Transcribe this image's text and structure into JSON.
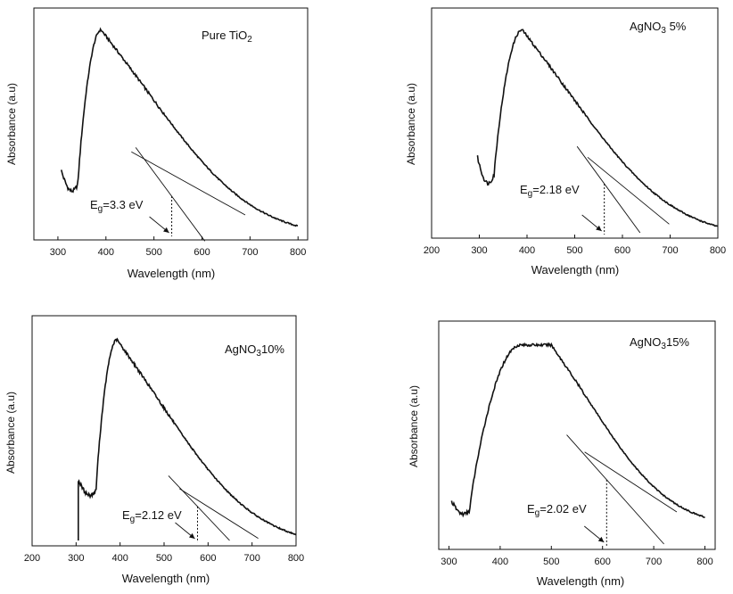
{
  "chart_data": [
    {
      "type": "line",
      "title": "Pure TiO",
      "title_sub": "2",
      "xlabel": "Wavelength (nm)",
      "ylabel": "Absorbance (a.u)",
      "xlim": [
        250,
        820
      ],
      "xticks": [
        300,
        400,
        500,
        600,
        700,
        800
      ],
      "ylim": [
        0,
        1
      ],
      "onset": 341,
      "peak_x": 390,
      "base_y": 0.3,
      "low_y": 0.2,
      "peak_y": 0.94,
      "end_x": 800,
      "end_y": 0.01,
      "tangent": [
        [
          462,
          0.4
        ],
        [
          606,
          -0.03
        ]
      ],
      "baseline": [
        [
          453,
          0.38
        ],
        [
          690,
          0.09
        ]
      ],
      "eg_x": 537,
      "eg_label_main": "E",
      "eg_label_sub": "g",
      "eg_label_rest": "=3.3 eV"
    },
    {
      "type": "line",
      "title": "AgNO",
      "title_sub": "3",
      "title_rest": " 5%",
      "xlabel": "Wavelength (nm)",
      "ylabel": "Absorbance (a.u)",
      "xlim": [
        200,
        800
      ],
      "xticks": [
        200,
        300,
        400,
        500,
        600,
        700,
        800
      ],
      "ylim": [
        0,
        1
      ],
      "onset": 330,
      "peak_x": 390,
      "base_y": 0.36,
      "low_y": 0.23,
      "peak_y": 0.94,
      "end_x": 800,
      "end_y": 0.0,
      "tangent": [
        [
          505,
          0.4
        ],
        [
          637,
          0.0
        ]
      ],
      "baseline": [
        [
          527,
          0.35
        ],
        [
          698,
          0.04
        ]
      ],
      "eg_x": 562,
      "eg_label_main": "E",
      "eg_label_sub": "g",
      "eg_label_rest": "=2.18 eV"
    },
    {
      "type": "line",
      "title": "AgNO",
      "title_sub": "3",
      "title_rest": "10%",
      "xlabel": "Wavelength (nm)",
      "ylabel": "Absorbance (a.u)",
      "xlim": [
        200,
        800
      ],
      "xticks": [
        200,
        300,
        400,
        500,
        600,
        700,
        800
      ],
      "ylim": [
        0,
        1
      ],
      "onset": 345,
      "peak_x": 393,
      "base_y": 0.28,
      "low_y": 0.21,
      "peak_y": 0.93,
      "start_x": 305,
      "end_x": 800,
      "end_y": 0.0,
      "tangent": [
        [
          510,
          0.3
        ],
        [
          649,
          0.0
        ]
      ],
      "baseline": [
        [
          535,
          0.24
        ],
        [
          714,
          0.01
        ]
      ],
      "eg_x": 576,
      "eg_label_main": "E",
      "eg_label_sub": "g",
      "eg_label_rest": "=2.12 eV"
    },
    {
      "type": "line",
      "title": "AgNO",
      "title_sub": "3",
      "title_rest": "15%",
      "xlabel": "Wavelength (nm)",
      "ylabel": "Absorbance (a.u)",
      "xlim": [
        280,
        820
      ],
      "xticks": [
        300,
        400,
        500,
        600,
        700,
        800
      ],
      "ylim": [
        0,
        1
      ],
      "onset": 340,
      "peak_x": 440,
      "peak_w": 60,
      "base_y": 0.2,
      "low_y": 0.14,
      "peak_y": 0.93,
      "end_x": 800,
      "end_y": 0.1,
      "tangent": [
        [
          530,
          0.51
        ],
        [
          720,
          0.0
        ]
      ],
      "baseline": [
        [
          565,
          0.43
        ],
        [
          745,
          0.15
        ]
      ],
      "eg_x": 608,
      "eg_label_main": "E",
      "eg_label_sub": "g",
      "eg_label_rest": "=2.02 eV"
    }
  ]
}
